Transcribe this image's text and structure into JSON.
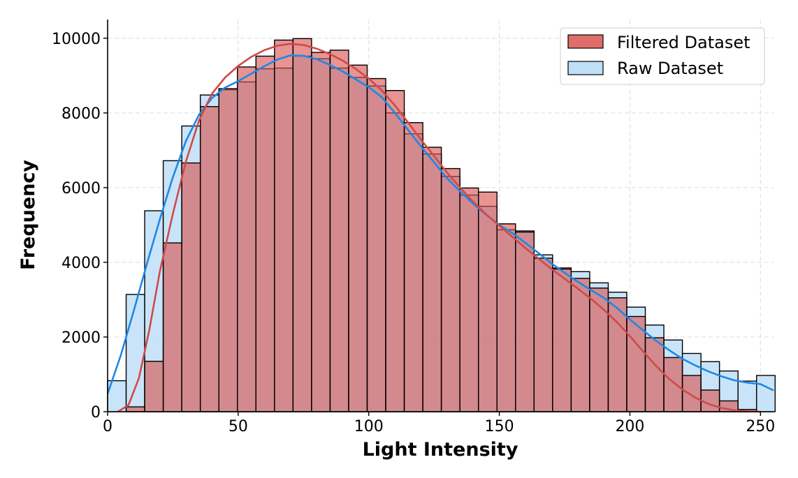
{
  "chart_data": {
    "type": "histogram",
    "xlabel": "Light Intensity",
    "ylabel": "Frequency",
    "xlim": [
      0,
      255
    ],
    "ylim": [
      0,
      10500
    ],
    "xticks": [
      0,
      50,
      100,
      150,
      200,
      250
    ],
    "yticks": [
      0,
      2000,
      4000,
      6000,
      8000,
      10000
    ],
    "grid": true,
    "legend_position": "top-right",
    "bin_width": 7.1,
    "series": [
      {
        "name": "Raw Dataset",
        "face_color": "#bfdff7",
        "line_color": "#1e88e5",
        "bins": [
          [
            0,
            830
          ],
          [
            7.1,
            3140
          ],
          [
            14.2,
            5380
          ],
          [
            21.3,
            6720
          ],
          [
            28.4,
            7650
          ],
          [
            35.5,
            8480
          ],
          [
            42.6,
            8620
          ],
          [
            49.7,
            8830
          ],
          [
            56.8,
            9180
          ],
          [
            63.9,
            9200
          ],
          [
            71.0,
            9520
          ],
          [
            78.1,
            9450
          ],
          [
            85.2,
            9200
          ],
          [
            92.3,
            8950
          ],
          [
            99.4,
            8720
          ],
          [
            106.5,
            8000
          ],
          [
            113.6,
            7440
          ],
          [
            120.7,
            6900
          ],
          [
            127.8,
            6300
          ],
          [
            134.9,
            5800
          ],
          [
            142.0,
            5500
          ],
          [
            149.1,
            4870
          ],
          [
            156.2,
            4840
          ],
          [
            163.3,
            4200
          ],
          [
            170.4,
            3850
          ],
          [
            177.5,
            3750
          ],
          [
            184.6,
            3450
          ],
          [
            191.7,
            3200
          ],
          [
            198.8,
            2800
          ],
          [
            205.9,
            2320
          ],
          [
            213.0,
            1920
          ],
          [
            220.1,
            1560
          ],
          [
            227.2,
            1340
          ],
          [
            234.3,
            1090
          ],
          [
            241.4,
            820
          ],
          [
            248.5,
            970
          ]
        ],
        "kde": [
          [
            0,
            480
          ],
          [
            5,
            1500
          ],
          [
            10,
            2700
          ],
          [
            15,
            3950
          ],
          [
            20,
            5150
          ],
          [
            25,
            6280
          ],
          [
            30,
            7250
          ],
          [
            35,
            7950
          ],
          [
            40,
            8400
          ],
          [
            45,
            8680
          ],
          [
            50,
            8850
          ],
          [
            55,
            9050
          ],
          [
            60,
            9250
          ],
          [
            65,
            9430
          ],
          [
            70,
            9540
          ],
          [
            75,
            9530
          ],
          [
            80,
            9440
          ],
          [
            85,
            9290
          ],
          [
            90,
            9110
          ],
          [
            95,
            8900
          ],
          [
            100,
            8690
          ],
          [
            105,
            8420
          ],
          [
            110,
            8000
          ],
          [
            115,
            7550
          ],
          [
            120,
            7100
          ],
          [
            125,
            6680
          ],
          [
            130,
            6250
          ],
          [
            135,
            5900
          ],
          [
            140,
            5570
          ],
          [
            145,
            5270
          ],
          [
            150,
            5000
          ],
          [
            155,
            4780
          ],
          [
            160,
            4520
          ],
          [
            165,
            4250
          ],
          [
            170,
            3970
          ],
          [
            175,
            3720
          ],
          [
            180,
            3480
          ],
          [
            185,
            3260
          ],
          [
            190,
            3050
          ],
          [
            195,
            2780
          ],
          [
            200,
            2470
          ],
          [
            205,
            2180
          ],
          [
            210,
            1900
          ],
          [
            215,
            1650
          ],
          [
            220,
            1420
          ],
          [
            225,
            1240
          ],
          [
            230,
            1080
          ],
          [
            235,
            950
          ],
          [
            240,
            840
          ],
          [
            245,
            780
          ],
          [
            250,
            740
          ],
          [
            255,
            570
          ]
        ]
      },
      {
        "name": "Filtered Dataset",
        "face_color": "#d9534f",
        "line_color": "#cd4b49",
        "bins": [
          [
            0,
            0
          ],
          [
            7.1,
            130
          ],
          [
            14.2,
            1350
          ],
          [
            21.3,
            4520
          ],
          [
            28.4,
            6660
          ],
          [
            35.5,
            8170
          ],
          [
            42.6,
            8650
          ],
          [
            49.7,
            9230
          ],
          [
            56.8,
            9520
          ],
          [
            63.9,
            9950
          ],
          [
            71.0,
            9990
          ],
          [
            78.1,
            9620
          ],
          [
            85.2,
            9680
          ],
          [
            92.3,
            9280
          ],
          [
            99.4,
            8920
          ],
          [
            106.5,
            8600
          ],
          [
            113.6,
            7740
          ],
          [
            120.7,
            7080
          ],
          [
            127.8,
            6510
          ],
          [
            134.9,
            5990
          ],
          [
            142.0,
            5880
          ],
          [
            149.1,
            5030
          ],
          [
            156.2,
            4810
          ],
          [
            163.3,
            4110
          ],
          [
            170.4,
            3820
          ],
          [
            177.5,
            3570
          ],
          [
            184.6,
            3310
          ],
          [
            191.7,
            3050
          ],
          [
            198.8,
            2550
          ],
          [
            205.9,
            1980
          ],
          [
            213.0,
            1450
          ],
          [
            220.1,
            970
          ],
          [
            227.2,
            580
          ],
          [
            234.3,
            290
          ],
          [
            241.4,
            60
          ],
          [
            248.5,
            0
          ]
        ],
        "kde": [
          [
            4,
            0
          ],
          [
            8,
            180
          ],
          [
            12,
            900
          ],
          [
            16,
            2200
          ],
          [
            20,
            3750
          ],
          [
            25,
            5300
          ],
          [
            30,
            6700
          ],
          [
            35,
            7800
          ],
          [
            40,
            8520
          ],
          [
            45,
            8950
          ],
          [
            50,
            9260
          ],
          [
            55,
            9500
          ],
          [
            60,
            9680
          ],
          [
            65,
            9800
          ],
          [
            70,
            9850
          ],
          [
            75,
            9820
          ],
          [
            80,
            9720
          ],
          [
            85,
            9580
          ],
          [
            90,
            9400
          ],
          [
            95,
            9180
          ],
          [
            100,
            8920
          ],
          [
            105,
            8600
          ],
          [
            110,
            8200
          ],
          [
            115,
            7750
          ],
          [
            120,
            7280
          ],
          [
            125,
            6850
          ],
          [
            130,
            6400
          ],
          [
            135,
            6000
          ],
          [
            140,
            5620
          ],
          [
            145,
            5280
          ],
          [
            150,
            4980
          ],
          [
            155,
            4680
          ],
          [
            160,
            4380
          ],
          [
            165,
            4100
          ],
          [
            170,
            3820
          ],
          [
            175,
            3560
          ],
          [
            180,
            3300
          ],
          [
            185,
            3030
          ],
          [
            190,
            2730
          ],
          [
            195,
            2400
          ],
          [
            200,
            2020
          ],
          [
            205,
            1620
          ],
          [
            210,
            1230
          ],
          [
            215,
            880
          ],
          [
            220,
            600
          ],
          [
            225,
            380
          ],
          [
            230,
            210
          ],
          [
            235,
            100
          ],
          [
            240,
            40
          ],
          [
            245,
            10
          ],
          [
            250,
            0
          ]
        ]
      }
    ]
  }
}
